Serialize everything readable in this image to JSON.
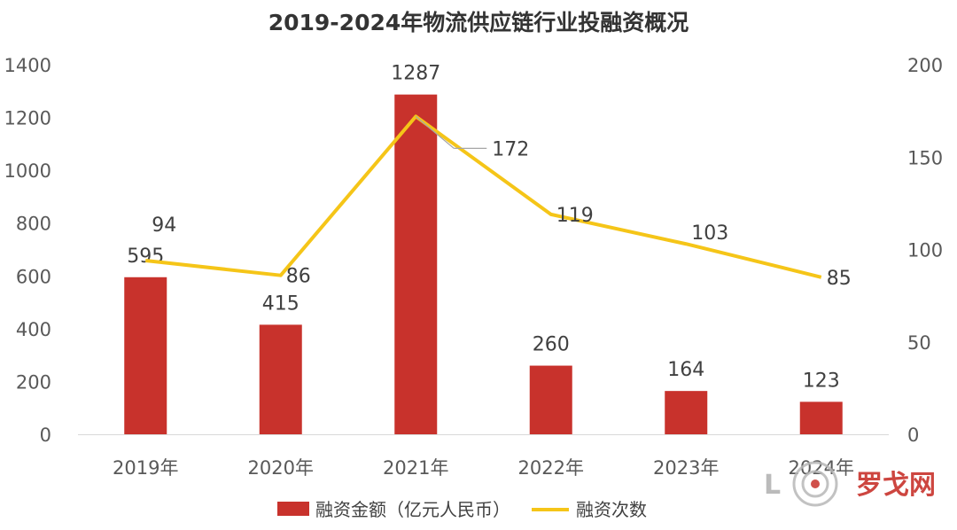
{
  "chart_data": {
    "type": "bar",
    "title": "2019-2024年物流供应链行业投融资概况",
    "categories": [
      "2019年",
      "2020年",
      "2021年",
      "2022年",
      "2023年",
      "2024年"
    ],
    "series": [
      {
        "name": "融资金额（亿元人民币）",
        "type": "bar",
        "axis": "left",
        "values": [
          595,
          415,
          1287,
          260,
          164,
          123
        ],
        "color": "#C8322C"
      },
      {
        "name": "融资次数",
        "type": "line",
        "axis": "right",
        "values": [
          94,
          86,
          172,
          119,
          103,
          85
        ],
        "color": "#F5C518"
      }
    ],
    "y_left": {
      "min": 0,
      "max": 1400,
      "ticks": [
        0,
        200,
        400,
        600,
        800,
        1000,
        1200,
        1400
      ]
    },
    "y_right": {
      "min": 0,
      "max": 200,
      "ticks": [
        0,
        50,
        100,
        150,
        200
      ]
    },
    "grid": false,
    "legend": "bottom"
  },
  "watermark": {
    "text_left": "L",
    "text_right": "罗戈网",
    "color": "#C8322C"
  }
}
